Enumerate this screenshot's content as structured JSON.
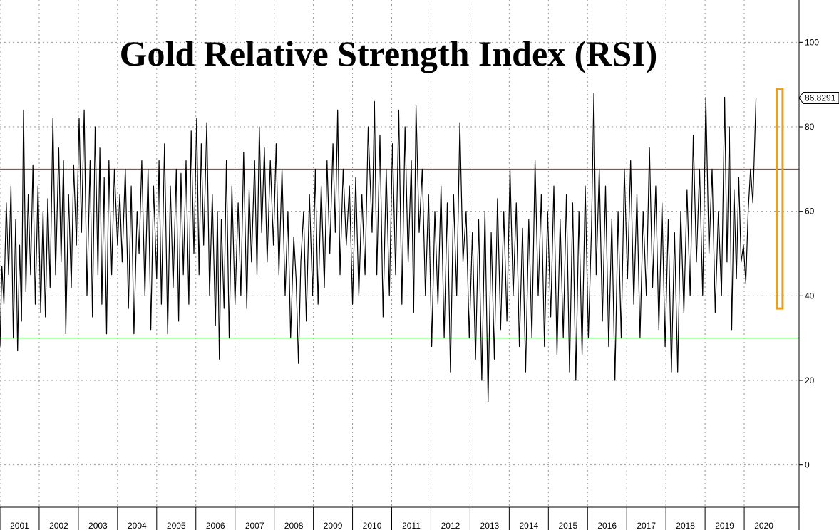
{
  "chart_data": {
    "type": "line",
    "title": "Gold Relative Strength Index (RSI)",
    "xlabel": "",
    "ylabel": "",
    "x_tick_labels": [
      "2001",
      "2002",
      "2003",
      "2004",
      "2005",
      "2006",
      "2007",
      "2008",
      "2009",
      "2010",
      "2011",
      "2012",
      "2013",
      "2014",
      "2015",
      "2016",
      "2017",
      "2018",
      "2019",
      "2020"
    ],
    "y_tick_labels": [
      "0",
      "20",
      "40",
      "60",
      "80",
      "100"
    ],
    "xlim": [
      2000.5,
      2020.9
    ],
    "ylim": [
      -10,
      110
    ],
    "grid": true,
    "reference_lines": [
      {
        "value": 70,
        "color": "#cc2200"
      },
      {
        "value": 30,
        "color": "#33cc33"
      }
    ],
    "last_value_label": "86.8291",
    "highlight": {
      "x_range": [
        2020.33,
        2020.48
      ],
      "y_range": [
        37,
        89
      ],
      "color": "#e8a020"
    },
    "series": [
      {
        "color": "#000000",
        "points": [
          [
            2000.5,
            28
          ],
          [
            2000.55,
            47
          ],
          [
            2000.6,
            38
          ],
          [
            2000.66,
            62
          ],
          [
            2000.72,
            45
          ],
          [
            2000.78,
            66
          ],
          [
            2000.84,
            30
          ],
          [
            2000.9,
            58
          ],
          [
            2000.95,
            27
          ],
          [
            2001.0,
            52
          ],
          [
            2001.05,
            34
          ],
          [
            2001.1,
            84
          ],
          [
            2001.16,
            41
          ],
          [
            2001.22,
            64
          ],
          [
            2001.28,
            45
          ],
          [
            2001.34,
            71
          ],
          [
            2001.4,
            38
          ],
          [
            2001.47,
            66
          ],
          [
            2001.54,
            36
          ],
          [
            2001.6,
            60
          ],
          [
            2001.66,
            35
          ],
          [
            2001.72,
            63
          ],
          [
            2001.78,
            42
          ],
          [
            2001.85,
            82
          ],
          [
            2001.92,
            45
          ],
          [
            2002.0,
            75
          ],
          [
            2002.06,
            48
          ],
          [
            2002.12,
            72
          ],
          [
            2002.18,
            31
          ],
          [
            2002.25,
            64
          ],
          [
            2002.32,
            42
          ],
          [
            2002.38,
            71
          ],
          [
            2002.45,
            52
          ],
          [
            2002.52,
            82
          ],
          [
            2002.58,
            55
          ],
          [
            2002.65,
            84
          ],
          [
            2002.72,
            40
          ],
          [
            2002.8,
            72
          ],
          [
            2002.86,
            35
          ],
          [
            2002.93,
            80
          ],
          [
            2003.0,
            45
          ],
          [
            2003.05,
            75
          ],
          [
            2003.1,
            38
          ],
          [
            2003.16,
            68
          ],
          [
            2003.22,
            31
          ],
          [
            2003.28,
            72
          ],
          [
            2003.35,
            45
          ],
          [
            2003.42,
            70
          ],
          [
            2003.5,
            52
          ],
          [
            2003.56,
            64
          ],
          [
            2003.62,
            48
          ],
          [
            2003.7,
            70
          ],
          [
            2003.78,
            37
          ],
          [
            2003.85,
            66
          ],
          [
            2003.92,
            31
          ],
          [
            2004.0,
            60
          ],
          [
            2004.05,
            50
          ],
          [
            2004.12,
            72
          ],
          [
            2004.2,
            40
          ],
          [
            2004.28,
            70
          ],
          [
            2004.35,
            32
          ],
          [
            2004.42,
            66
          ],
          [
            2004.5,
            44
          ],
          [
            2004.56,
            72
          ],
          [
            2004.62,
            38
          ],
          [
            2004.7,
            76
          ],
          [
            2004.78,
            31
          ],
          [
            2004.85,
            66
          ],
          [
            2004.92,
            42
          ],
          [
            2005.0,
            70
          ],
          [
            2005.06,
            34
          ],
          [
            2005.12,
            69
          ],
          [
            2005.18,
            45
          ],
          [
            2005.25,
            72
          ],
          [
            2005.32,
            38
          ],
          [
            2005.38,
            79
          ],
          [
            2005.45,
            50
          ],
          [
            2005.52,
            82
          ],
          [
            2005.58,
            45
          ],
          [
            2005.64,
            76
          ],
          [
            2005.7,
            52
          ],
          [
            2005.78,
            81
          ],
          [
            2005.85,
            40
          ],
          [
            2005.92,
            64
          ],
          [
            2006.0,
            33
          ],
          [
            2006.05,
            60
          ],
          [
            2006.1,
            25
          ],
          [
            2006.15,
            58
          ],
          [
            2006.22,
            37
          ],
          [
            2006.28,
            72
          ],
          [
            2006.35,
            30
          ],
          [
            2006.42,
            66
          ],
          [
            2006.5,
            38
          ],
          [
            2006.58,
            62
          ],
          [
            2006.65,
            40
          ],
          [
            2006.72,
            74
          ],
          [
            2006.8,
            37
          ],
          [
            2006.86,
            65
          ],
          [
            2006.92,
            48
          ],
          [
            2007.0,
            72
          ],
          [
            2007.06,
            45
          ],
          [
            2007.12,
            80
          ],
          [
            2007.18,
            55
          ],
          [
            2007.25,
            75
          ],
          [
            2007.32,
            48
          ],
          [
            2007.4,
            72
          ],
          [
            2007.48,
            52
          ],
          [
            2007.55,
            76
          ],
          [
            2007.62,
            45
          ],
          [
            2007.7,
            70
          ],
          [
            2007.78,
            40
          ],
          [
            2007.85,
            60
          ],
          [
            2007.92,
            30
          ],
          [
            2008.0,
            54
          ],
          [
            2008.06,
            44
          ],
          [
            2008.12,
            24
          ],
          [
            2008.18,
            48
          ],
          [
            2008.25,
            60
          ],
          [
            2008.32,
            34
          ],
          [
            2008.4,
            64
          ],
          [
            2008.48,
            40
          ],
          [
            2008.55,
            70
          ],
          [
            2008.62,
            38
          ],
          [
            2008.7,
            66
          ],
          [
            2008.78,
            42
          ],
          [
            2008.85,
            72
          ],
          [
            2008.92,
            50
          ],
          [
            2009.0,
            76
          ],
          [
            2009.06,
            55
          ],
          [
            2009.12,
            84
          ],
          [
            2009.18,
            45
          ],
          [
            2009.26,
            70
          ],
          [
            2009.34,
            52
          ],
          [
            2009.42,
            66
          ],
          [
            2009.5,
            38
          ],
          [
            2009.58,
            68
          ],
          [
            2009.66,
            40
          ],
          [
            2009.74,
            64
          ],
          [
            2009.82,
            45
          ],
          [
            2009.9,
            80
          ],
          [
            2010.0,
            55
          ],
          [
            2010.06,
            86
          ],
          [
            2010.12,
            45
          ],
          [
            2010.2,
            78
          ],
          [
            2010.28,
            35
          ],
          [
            2010.36,
            70
          ],
          [
            2010.44,
            40
          ],
          [
            2010.52,
            76
          ],
          [
            2010.6,
            45
          ],
          [
            2010.68,
            84
          ],
          [
            2010.76,
            38
          ],
          [
            2010.84,
            80
          ],
          [
            2010.92,
            48
          ],
          [
            2011.0,
            72
          ],
          [
            2011.06,
            36
          ],
          [
            2011.12,
            85
          ],
          [
            2011.2,
            55
          ],
          [
            2011.28,
            70
          ],
          [
            2011.36,
            40
          ],
          [
            2011.44,
            64
          ],
          [
            2011.52,
            28
          ],
          [
            2011.6,
            60
          ],
          [
            2011.68,
            38
          ],
          [
            2011.76,
            66
          ],
          [
            2011.84,
            30
          ],
          [
            2011.92,
            62
          ],
          [
            2012.0,
            22
          ],
          [
            2012.08,
            64
          ],
          [
            2012.16,
            40
          ],
          [
            2012.24,
            81
          ],
          [
            2012.32,
            48
          ],
          [
            2012.4,
            60
          ],
          [
            2012.48,
            30
          ],
          [
            2012.56,
            55
          ],
          [
            2012.64,
            25
          ],
          [
            2012.72,
            58
          ],
          [
            2012.8,
            20
          ],
          [
            2012.88,
            60
          ],
          [
            2012.96,
            15
          ],
          [
            2013.04,
            55
          ],
          [
            2013.12,
            25
          ],
          [
            2013.2,
            63
          ],
          [
            2013.28,
            32
          ],
          [
            2013.36,
            60
          ],
          [
            2013.44,
            34
          ],
          [
            2013.52,
            70
          ],
          [
            2013.6,
            40
          ],
          [
            2013.68,
            62
          ],
          [
            2013.76,
            28
          ],
          [
            2013.84,
            56
          ],
          [
            2013.92,
            22
          ],
          [
            2014.0,
            58
          ],
          [
            2014.08,
            30
          ],
          [
            2014.16,
            72
          ],
          [
            2014.24,
            40
          ],
          [
            2014.32,
            64
          ],
          [
            2014.4,
            28
          ],
          [
            2014.48,
            60
          ],
          [
            2014.56,
            35
          ],
          [
            2014.64,
            66
          ],
          [
            2014.72,
            26
          ],
          [
            2014.8,
            58
          ],
          [
            2014.88,
            30
          ],
          [
            2014.96,
            64
          ],
          [
            2015.04,
            22
          ],
          [
            2015.12,
            62
          ],
          [
            2015.2,
            20
          ],
          [
            2015.28,
            60
          ],
          [
            2015.36,
            26
          ],
          [
            2015.44,
            66
          ],
          [
            2015.52,
            30
          ],
          [
            2015.6,
            56
          ],
          [
            2015.66,
            88
          ],
          [
            2015.72,
            45
          ],
          [
            2015.8,
            70
          ],
          [
            2015.88,
            34
          ],
          [
            2015.96,
            66
          ],
          [
            2016.04,
            28
          ],
          [
            2016.12,
            58
          ],
          [
            2016.2,
            20
          ],
          [
            2016.28,
            60
          ],
          [
            2016.36,
            30
          ],
          [
            2016.44,
            70
          ],
          [
            2016.52,
            44
          ],
          [
            2016.6,
            72
          ],
          [
            2016.68,
            38
          ],
          [
            2016.76,
            64
          ],
          [
            2016.84,
            30
          ],
          [
            2016.92,
            60
          ],
          [
            2017.0,
            40
          ],
          [
            2017.08,
            75
          ],
          [
            2017.16,
            42
          ],
          [
            2017.24,
            66
          ],
          [
            2017.32,
            32
          ],
          [
            2017.4,
            62
          ],
          [
            2017.48,
            28
          ],
          [
            2017.56,
            58
          ],
          [
            2017.64,
            22
          ],
          [
            2017.72,
            55
          ],
          [
            2017.8,
            22
          ],
          [
            2017.88,
            60
          ],
          [
            2017.96,
            36
          ],
          [
            2018.04,
            65
          ],
          [
            2018.12,
            40
          ],
          [
            2018.2,
            78
          ],
          [
            2018.28,
            48
          ],
          [
            2018.36,
            70
          ],
          [
            2018.44,
            40
          ],
          [
            2018.52,
            87
          ],
          [
            2018.6,
            50
          ],
          [
            2018.68,
            70
          ],
          [
            2018.76,
            36
          ],
          [
            2018.84,
            60
          ],
          [
            2018.92,
            40
          ],
          [
            2019.0,
            87
          ],
          [
            2019.06,
            48
          ],
          [
            2019.12,
            80
          ],
          [
            2019.18,
            32
          ],
          [
            2019.24,
            65
          ],
          [
            2019.3,
            44
          ],
          [
            2019.36,
            68
          ],
          [
            2019.42,
            48
          ],
          [
            2019.48,
            52
          ],
          [
            2019.54,
            43
          ],
          [
            2019.6,
            60
          ],
          [
            2019.66,
            70
          ],
          [
            2019.72,
            62
          ],
          [
            2019.8,
            86.8291
          ]
        ]
      }
    ]
  }
}
